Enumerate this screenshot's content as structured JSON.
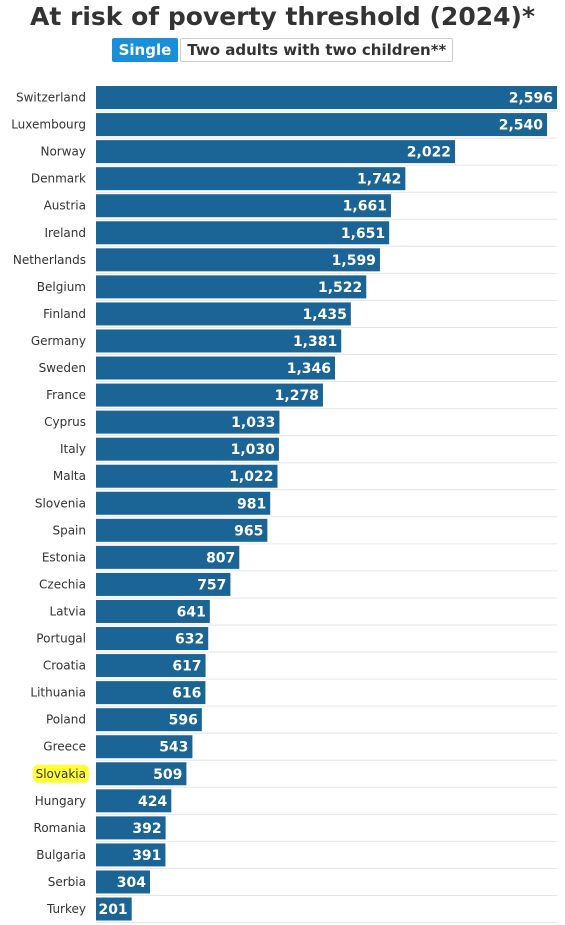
{
  "header": {
    "title": "At risk of poverty threshold (2024)*",
    "tabs": [
      "Single",
      "Two adults with two children**"
    ],
    "active_tab": 0
  },
  "colors": {
    "bar": "#1a6496",
    "grid": "#e6e6e6",
    "highlight": "#ffff33",
    "tab_active": "#1a8fd8"
  },
  "chart_data": {
    "type": "bar",
    "orientation": "horizontal",
    "title": "At risk of poverty threshold (2024)*",
    "categories": [
      "Switzerland",
      "Luxembourg",
      "Norway",
      "Denmark",
      "Austria",
      "Ireland",
      "Netherlands",
      "Belgium",
      "Finland",
      "Germany",
      "Sweden",
      "France",
      "Cyprus",
      "Italy",
      "Malta",
      "Slovenia",
      "Spain",
      "Estonia",
      "Czechia",
      "Latvia",
      "Portugal",
      "Croatia",
      "Lithuania",
      "Poland",
      "Greece",
      "Slovakia",
      "Hungary",
      "Romania",
      "Bulgaria",
      "Serbia",
      "Turkey"
    ],
    "values": [
      2596,
      2540,
      2022,
      1742,
      1661,
      1651,
      1599,
      1522,
      1435,
      1381,
      1346,
      1278,
      1033,
      1030,
      1022,
      981,
      965,
      807,
      757,
      641,
      632,
      617,
      616,
      596,
      543,
      509,
      424,
      392,
      391,
      304,
      201
    ],
    "value_labels": [
      "2,596",
      "2,540",
      "2,022",
      "1,742",
      "1,661",
      "1,651",
      "1,599",
      "1,522",
      "1,435",
      "1,381",
      "1,346",
      "1,278",
      "1,033",
      "1,030",
      "1,022",
      "981",
      "965",
      "807",
      "757",
      "641",
      "632",
      "617",
      "616",
      "596",
      "543",
      "509",
      "424",
      "392",
      "391",
      "304",
      "201"
    ],
    "highlighted_category": "Slovakia",
    "xlim": [
      0,
      2596
    ],
    "grid": true,
    "legend": false
  }
}
